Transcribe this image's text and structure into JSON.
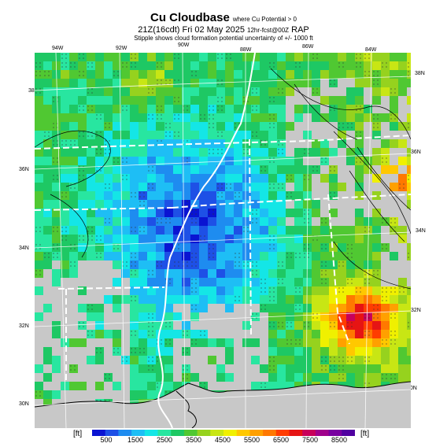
{
  "title": {
    "main": "Cu Cloudbase",
    "main_sub": "where Cu Potential > 0",
    "valid": "21Z(16cdt) Fri 02 May 2025",
    "valid_sub": "12hr-fcst@00Z",
    "model": "RAP",
    "note": "Stipple shows cloud formation potential uncertainty of +/- 1000 ft"
  },
  "lon_labels": [
    "94W",
    "92W",
    "90W",
    "88W",
    "86W",
    "84W"
  ],
  "lat_labels_left": [
    "36N",
    "34N",
    "32N",
    "30N"
  ],
  "lat_labels_right": [
    "38N",
    "36N",
    "34N",
    "32N",
    "30N"
  ],
  "lat_label_topleft": "38N",
  "colorbar": {
    "unit_left": "[ft]",
    "unit_right": "[ft]",
    "tick_labels": [
      "500",
      "1500",
      "2500",
      "3500",
      "4500",
      "5500",
      "6500",
      "7500",
      "8500"
    ],
    "colors": [
      "#0a14d2",
      "#1e50e6",
      "#1e8cf0",
      "#1ebef5",
      "#14e6e6",
      "#28e6a0",
      "#1ec864",
      "#50c832",
      "#96d21e",
      "#c8e614",
      "#f0f000",
      "#ffc800",
      "#ffa000",
      "#ff7800",
      "#ff3c00",
      "#e61414",
      "#c8005a",
      "#a0008c",
      "#7800a0",
      "#5000a0"
    ]
  },
  "map_colors": {
    "gray": "#c8c8c8",
    "land_bg": "#b4b4b4",
    "state_lines": "#ffffff",
    "coast": "#000000"
  }
}
